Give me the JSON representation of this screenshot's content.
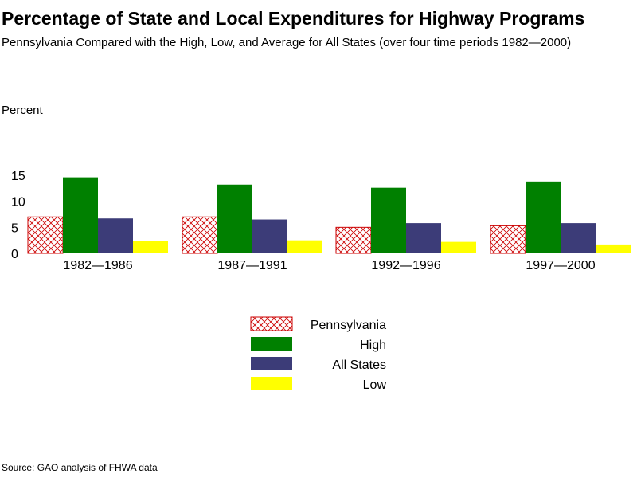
{
  "chart_data": {
    "type": "bar",
    "title": "Percentage of State and Local Expenditures for Highway Programs",
    "subtitle": "Pennsylvania Compared with the High, Low, and Average for All States (over four time periods 1982—2000)",
    "ylabel": "Percent",
    "xlabel": "",
    "ylim": [
      0,
      15
    ],
    "yticks": [
      0,
      5,
      10,
      15
    ],
    "categories": [
      "1982—1986",
      "1987—1991",
      "1992—1996",
      "1997—2000"
    ],
    "series": [
      {
        "name": "Pennsylvania",
        "values": [
          7.0,
          7.0,
          5.0,
          5.3
        ],
        "color": "#cc0000",
        "pattern": "crosshatch"
      },
      {
        "name": "High",
        "values": [
          14.6,
          13.2,
          12.6,
          13.8
        ],
        "color": "#008000"
      },
      {
        "name": "All States",
        "values": [
          6.7,
          6.5,
          5.8,
          5.8
        ],
        "color": "#3c3c78"
      },
      {
        "name": "Low",
        "values": [
          2.3,
          2.5,
          2.2,
          1.7
        ],
        "color": "#ffff00"
      }
    ],
    "legend": "bottom-center",
    "grid": false,
    "source": "Source: GAO analysis of FHWA data"
  }
}
